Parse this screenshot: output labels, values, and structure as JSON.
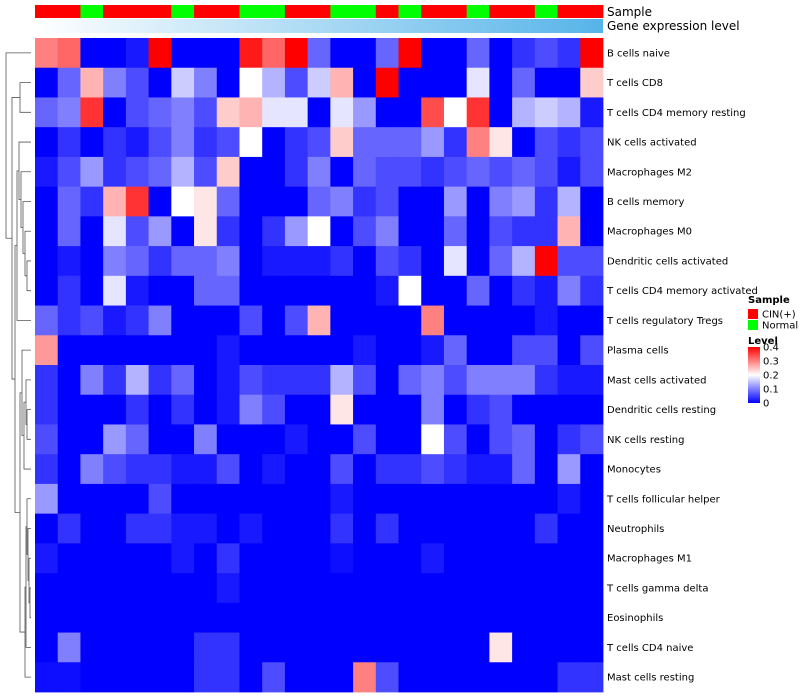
{
  "chart_data": {
    "type": "heatmap",
    "title": "",
    "annotations": [
      {
        "label": "Sample",
        "values": [
          "CIN(+)",
          "CIN(+)",
          "Normal",
          "CIN(+)",
          "CIN(+)",
          "CIN(+)",
          "Normal",
          "CIN(+)",
          "CIN(+)",
          "Normal",
          "Normal",
          "CIN(+)",
          "CIN(+)",
          "Normal",
          "Normal",
          "CIN(+)",
          "Normal",
          "CIN(+)",
          "CIN(+)",
          "Normal",
          "CIN(+)",
          "CIN(+)",
          "Normal",
          "CIN(+)",
          "CIN(+)"
        ]
      },
      {
        "label": "Gene expression level",
        "gradient": [
          "#ffffff",
          "#56b4e9"
        ]
      }
    ],
    "rows": [
      "B cells naive",
      "T cells CD8",
      "T cells CD4 memory resting",
      "NK cells activated",
      "Macrophages M2",
      "B cells memory",
      "Macrophages M0",
      "Dendritic cells activated",
      "T cells CD4 memory activated",
      "T cells regulatory  Tregs",
      "Plasma cells",
      "Mast cells activated",
      "Dendritic cells resting",
      "NK cells resting",
      "Monocytes",
      "T cells follicular helper",
      "Neutrophils",
      "Macrophages M1",
      "T cells gamma delta",
      "Eosinophils",
      "T cells CD4 naive",
      "Mast cells resting"
    ],
    "values": [
      [
        0.3,
        0.32,
        0,
        0,
        0.02,
        0.4,
        0,
        0,
        0,
        0.38,
        0.32,
        0.4,
        0.08,
        0,
        0,
        0.08,
        0.4,
        0,
        0,
        0.08,
        0,
        0.04,
        0.06,
        0.04,
        0.4
      ],
      [
        0,
        0.08,
        0.26,
        0.1,
        0.06,
        0,
        0.16,
        0.1,
        0,
        0.2,
        0.14,
        0.06,
        0.16,
        0.26,
        0,
        0.4,
        0,
        0,
        0,
        0.18,
        0,
        0.08,
        0,
        0,
        0.24
      ],
      [
        0.08,
        0.1,
        0.36,
        0,
        0.06,
        0.08,
        0.1,
        0.06,
        0.24,
        0.26,
        0.18,
        0.18,
        0,
        0.18,
        0.12,
        0,
        0,
        0.34,
        0.2,
        0.36,
        0,
        0.14,
        0.16,
        0.14,
        0.02
      ],
      [
        0,
        0.04,
        0,
        0.04,
        0.02,
        0.06,
        0.1,
        0.04,
        0.06,
        0.2,
        0,
        0.04,
        0.06,
        0.24,
        0.08,
        0.08,
        0.08,
        0.12,
        0.04,
        0.3,
        0.22,
        0,
        0.06,
        0.04,
        0.06
      ],
      [
        0.02,
        0.06,
        0.12,
        0.04,
        0.06,
        0.08,
        0.14,
        0.06,
        0.24,
        0,
        0,
        0.04,
        0.1,
        0,
        0.08,
        0.06,
        0.06,
        0.04,
        0.06,
        0.08,
        0.06,
        0.08,
        0.06,
        0.02,
        0.06
      ],
      [
        0,
        0.08,
        0.04,
        0.26,
        0.36,
        0,
        0.2,
        0.22,
        0.08,
        0,
        0,
        0,
        0.08,
        0.1,
        0.04,
        0.06,
        0,
        0,
        0.12,
        0,
        0.1,
        0.12,
        0.04,
        0.14,
        0
      ],
      [
        0,
        0.08,
        0,
        0.18,
        0.06,
        0.12,
        0,
        0.22,
        0.04,
        0,
        0.04,
        0.12,
        0.2,
        0,
        0.06,
        0.1,
        0,
        0,
        0.08,
        0,
        0.06,
        0.04,
        0.04,
        0.26,
        0
      ],
      [
        0,
        0.02,
        0,
        0.1,
        0.08,
        0.04,
        0.08,
        0.08,
        0.1,
        0,
        0.02,
        0.02,
        0.02,
        0.04,
        0,
        0.06,
        0.04,
        0,
        0.18,
        0,
        0.08,
        0.14,
        0.4,
        0.06,
        0.06
      ],
      [
        0,
        0.04,
        0,
        0.18,
        0.02,
        0,
        0,
        0.08,
        0.08,
        0,
        0,
        0,
        0,
        0,
        0,
        0.02,
        0.2,
        0,
        0,
        0.08,
        0,
        0.04,
        0.02,
        0.1,
        0.04
      ],
      [
        0.08,
        0.04,
        0.06,
        0.02,
        0.04,
        0.1,
        0,
        0,
        0,
        0.06,
        0,
        0.06,
        0.26,
        0,
        0,
        0,
        0,
        0.3,
        0,
        0,
        0,
        0,
        0.02,
        0,
        0
      ],
      [
        0.28,
        0,
        0,
        0,
        0,
        0,
        0,
        0,
        0.02,
        0,
        0,
        0,
        0,
        0,
        0.02,
        0,
        0,
        0.02,
        0.08,
        0,
        0,
        0.06,
        0.06,
        0,
        0.06
      ],
      [
        0.04,
        0,
        0.1,
        0.04,
        0.14,
        0.04,
        0.08,
        0,
        0.02,
        0.06,
        0.04,
        0.04,
        0.04,
        0.14,
        0.06,
        0,
        0.08,
        0.1,
        0.06,
        0.1,
        0.1,
        0.1,
        0.04,
        0.02,
        0.02
      ],
      [
        0.04,
        0,
        0,
        0,
        0.04,
        0,
        0.04,
        0,
        0.02,
        0.1,
        0.06,
        0,
        0,
        0.22,
        0,
        0,
        0,
        0.1,
        0,
        0.04,
        0.06,
        0,
        0,
        0,
        0
      ],
      [
        0.06,
        0,
        0,
        0.12,
        0.08,
        0,
        0,
        0.1,
        0,
        0,
        0,
        0.02,
        0,
        0,
        0.06,
        0,
        0,
        0.2,
        0.06,
        0,
        0.06,
        0.08,
        0,
        0.04,
        0.06
      ],
      [
        0.04,
        0,
        0.1,
        0.06,
        0.04,
        0.04,
        0.02,
        0.02,
        0.06,
        0,
        0.02,
        0,
        0,
        0.06,
        0,
        0.04,
        0.04,
        0.06,
        0.04,
        0.02,
        0.02,
        0.08,
        0,
        0.12,
        0
      ],
      [
        0.12,
        0,
        0,
        0,
        0,
        0.06,
        0,
        0,
        0,
        0,
        0,
        0,
        0,
        0.02,
        0,
        0,
        0,
        0,
        0,
        0,
        0,
        0,
        0,
        0.02,
        0
      ],
      [
        0,
        0.04,
        0,
        0,
        0.04,
        0.04,
        0.02,
        0.02,
        0,
        0.02,
        0,
        0,
        0,
        0.04,
        0,
        0.04,
        0,
        0,
        0,
        0,
        0,
        0,
        0.04,
        0,
        0
      ],
      [
        0.02,
        0,
        0,
        0,
        0,
        0,
        0.02,
        0,
        0.04,
        0,
        0,
        0,
        0,
        0.01,
        0,
        0,
        0,
        0.02,
        0,
        0,
        0,
        0,
        0,
        0,
        0
      ],
      [
        0,
        0,
        0,
        0,
        0,
        0,
        0,
        0,
        0.02,
        0,
        0,
        0,
        0,
        0,
        0,
        0,
        0,
        0,
        0,
        0,
        0,
        0,
        0,
        0,
        0
      ],
      [
        0,
        0,
        0,
        0,
        0,
        0,
        0,
        0,
        0,
        0,
        0,
        0,
        0,
        0,
        0,
        0,
        0,
        0,
        0,
        0,
        0,
        0,
        0,
        0,
        0
      ],
      [
        0,
        0.1,
        0,
        0,
        0,
        0,
        0,
        0.04,
        0.04,
        0,
        0,
        0,
        0,
        0,
        0,
        0,
        0,
        0,
        0,
        0,
        0.22,
        0,
        0,
        0,
        0
      ],
      [
        0.01,
        0.01,
        0,
        0,
        0,
        0,
        0,
        0.04,
        0.04,
        0,
        0.06,
        0,
        0,
        0,
        0.3,
        0.06,
        0,
        0,
        0,
        0,
        0,
        0,
        0,
        0.04,
        0.04
      ]
    ],
    "color_scale": {
      "min": 0,
      "max": 0.4,
      "colors": [
        "#0000ff",
        "#ffffff",
        "#ff0000"
      ]
    },
    "legends": [
      {
        "title": "Sample",
        "items": [
          {
            "label": "CIN(+)",
            "color": "#ff0000"
          },
          {
            "label": "Normal",
            "color": "#00ff00"
          }
        ]
      },
      {
        "title": "Level",
        "ticks": [
          "0.4",
          "0.3",
          "0.2",
          "0.1",
          "0"
        ]
      }
    ],
    "row_dendrogram": true
  }
}
